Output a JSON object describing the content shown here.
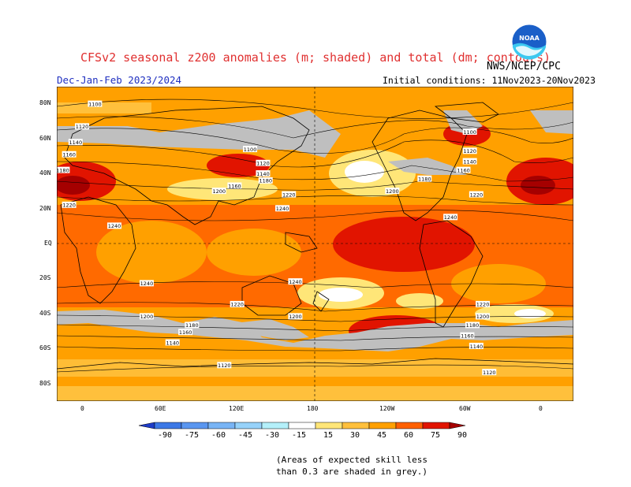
{
  "header": {
    "title": "CFSv2 seasonal z200 anomalies (m; shaded) and total (dm; contours)",
    "season": "Dec-Jan-Feb 2023/2024",
    "source": "NWS/NCEP/CPC",
    "initial_conditions": "Initial conditions: 11Nov2023-20Nov2023",
    "logo_text": "NOAA"
  },
  "axes": {
    "lat_labels": [
      "80N",
      "60N",
      "40N",
      "20N",
      "EQ",
      "20S",
      "40S",
      "60S",
      "80S"
    ],
    "lon_labels": [
      "0",
      "60E",
      "120E",
      "180",
      "120W",
      "60W",
      "0"
    ]
  },
  "colorbar": {
    "labels": [
      "-90",
      "-75",
      "-60",
      "-45",
      "-30",
      "-15",
      "15",
      "30",
      "45",
      "60",
      "75",
      "90"
    ],
    "colors": [
      "#1e3cc8",
      "#3c78e6",
      "#5a96f0",
      "#78b4f5",
      "#96d2fa",
      "#b4f0fa",
      "#ffffff",
      "#ffe678",
      "#ffc03c",
      "#ffa000",
      "#ff6000",
      "#e11400",
      "#a50000"
    ]
  },
  "contour_labels": [
    {
      "text": "1100",
      "lon": 10,
      "lat": 80
    },
    {
      "text": "1120",
      "lon": 0,
      "lat": 67
    },
    {
      "text": "1140",
      "lon": -5,
      "lat": 58
    },
    {
      "text": "1160",
      "lon": -10,
      "lat": 51
    },
    {
      "text": "1180",
      "lon": -15,
      "lat": 42
    },
    {
      "text": "1220",
      "lon": -10,
      "lat": 22
    },
    {
      "text": "1240",
      "lon": 25,
      "lat": 10
    },
    {
      "text": "1100",
      "lon": 130,
      "lat": 54
    },
    {
      "text": "1120",
      "lon": 140,
      "lat": 46
    },
    {
      "text": "1140",
      "lon": 140,
      "lat": 40
    },
    {
      "text": "1160",
      "lon": 118,
      "lat": 33
    },
    {
      "text": "1180",
      "lon": 142,
      "lat": 36
    },
    {
      "text": "1200",
      "lon": 106,
      "lat": 30
    },
    {
      "text": "1220",
      "lon": 160,
      "lat": 28
    },
    {
      "text": "1240",
      "lon": 155,
      "lat": 20
    },
    {
      "text": "1100",
      "lon": -60,
      "lat": 64
    },
    {
      "text": "1120",
      "lon": -60,
      "lat": 53
    },
    {
      "text": "1140",
      "lon": -60,
      "lat": 47
    },
    {
      "text": "1160",
      "lon": -65,
      "lat": 42
    },
    {
      "text": "1180",
      "lon": -95,
      "lat": 37
    },
    {
      "text": "1200",
      "lon": -120,
      "lat": 30
    },
    {
      "text": "1220",
      "lon": -55,
      "lat": 28
    },
    {
      "text": "1240",
      "lon": -75,
      "lat": 15
    },
    {
      "text": "1240",
      "lon": 50,
      "lat": -23
    },
    {
      "text": "1240",
      "lon": 165,
      "lat": -22
    },
    {
      "text": "1220",
      "lon": 120,
      "lat": -35
    },
    {
      "text": "1200",
      "lon": 50,
      "lat": -42
    },
    {
      "text": "1200",
      "lon": 165,
      "lat": -42
    },
    {
      "text": "1180",
      "lon": 85,
      "lat": -47
    },
    {
      "text": "1160",
      "lon": 80,
      "lat": -51
    },
    {
      "text": "1140",
      "lon": 70,
      "lat": -57
    },
    {
      "text": "1220",
      "lon": -50,
      "lat": -35
    },
    {
      "text": "1200",
      "lon": -50,
      "lat": -42
    },
    {
      "text": "1180",
      "lon": -58,
      "lat": -47
    },
    {
      "text": "1160",
      "lon": -62,
      "lat": -53
    },
    {
      "text": "1140",
      "lon": -55,
      "lat": -59
    },
    {
      "text": "1120",
      "lon": 110,
      "lat": -70
    },
    {
      "text": "1120",
      "lon": -45,
      "lat": -74
    }
  ],
  "note": {
    "line1": "(Areas of expected skill less",
    "line2": "than 0.3 are shaded in grey.)"
  }
}
